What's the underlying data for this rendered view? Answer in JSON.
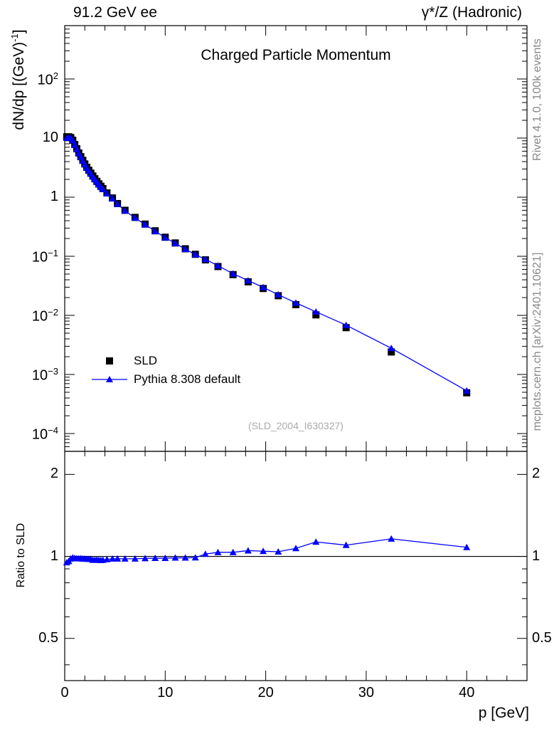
{
  "header": {
    "left_label": "91.2 GeV ee",
    "right_label": "γ*/Z (Hadronic)"
  },
  "side_text": {
    "rivet": "Rivet 4.1.0,  100k events",
    "mcplots": "mcplots.cern.ch [arXiv:2401.10621]"
  },
  "reference_tag": "(SLD_2004_I630327)",
  "legend": [
    {
      "label": "SLD",
      "marker": "square",
      "color": "#000000"
    },
    {
      "label": "Pythia 8.308 default",
      "marker": "triangle",
      "color": "#0000ff"
    }
  ],
  "chart_data": [
    {
      "type": "scatter",
      "title": "Charged Particle Momentum",
      "xlabel": "p [GeV]",
      "ylabel_text": "dN/dp [(GeV)",
      "ylabel_sup": "-1",
      "ylabel_close": "]",
      "yscale": "log",
      "xlim": [
        0,
        46
      ],
      "ylim": [
        5e-05,
        800
      ],
      "ytick_labels": [
        {
          "base": "10",
          "exp": "2",
          "value": 100
        },
        {
          "base": "10",
          "exp": "",
          "value": 10
        },
        {
          "base": "1",
          "exp": "",
          "value": 1
        },
        {
          "base": "10",
          "exp": "−1",
          "value": 0.1
        },
        {
          "base": "10",
          "exp": "−2",
          "value": 0.01
        },
        {
          "base": "10",
          "exp": "−3",
          "value": 0.001
        },
        {
          "base": "10",
          "exp": "−4",
          "value": 0.0001
        }
      ],
      "series": [
        {
          "name": "SLD",
          "x": [
            0.2,
            0.4,
            0.6,
            0.8,
            1.0,
            1.2,
            1.4,
            1.6,
            1.8,
            2.0,
            2.2,
            2.4,
            2.6,
            2.8,
            3.0,
            3.2,
            3.4,
            3.6,
            3.8,
            4.2,
            4.75,
            5.25,
            6.0,
            7.0,
            8.0,
            9.0,
            10.0,
            11.0,
            12.0,
            13.0,
            14.0,
            15.25,
            16.75,
            18.25,
            19.75,
            21.25,
            23.0,
            25.0,
            28.0,
            32.5,
            40.0
          ],
          "y": [
            10.5,
            10.5,
            10.2,
            9.2,
            7.8,
            6.6,
            5.6,
            4.85,
            4.2,
            3.65,
            3.2,
            2.85,
            2.55,
            2.28,
            2.05,
            1.85,
            1.68,
            1.53,
            1.4,
            1.18,
            0.97,
            0.78,
            0.6,
            0.455,
            0.35,
            0.27,
            0.21,
            0.168,
            0.134,
            0.108,
            0.087,
            0.067,
            0.049,
            0.037,
            0.0285,
            0.0215,
            0.0152,
            0.0102,
            0.0062,
            0.0024,
            0.00049
          ]
        },
        {
          "name": "Pythia 8.308 default",
          "x": [
            0.2,
            0.4,
            0.6,
            0.8,
            1.0,
            1.2,
            1.4,
            1.6,
            1.8,
            2.0,
            2.2,
            2.4,
            2.6,
            2.8,
            3.0,
            3.2,
            3.4,
            3.6,
            3.8,
            4.2,
            4.75,
            5.25,
            6.0,
            7.0,
            8.0,
            9.0,
            10.0,
            11.0,
            12.0,
            13.0,
            14.0,
            15.25,
            16.75,
            18.25,
            19.75,
            21.25,
            23.0,
            25.0,
            28.0,
            32.5,
            40.0
          ],
          "y": [
            9.98,
            10.08,
            9.99,
            9.11,
            7.68,
            6.49,
            5.5,
            4.77,
            4.12,
            3.58,
            3.13,
            2.79,
            2.49,
            2.21,
            1.99,
            1.8,
            1.63,
            1.48,
            1.36,
            1.15,
            0.95,
            0.764,
            0.588,
            0.446,
            0.344,
            0.266,
            0.207,
            0.166,
            0.132,
            0.107,
            0.0887,
            0.0693,
            0.0507,
            0.0388,
            0.0298,
            0.0224,
            0.0163,
            0.0115,
            0.00684,
            0.00278,
            0.00053
          ]
        }
      ]
    },
    {
      "type": "line",
      "title": "",
      "xlabel": "p [GeV]",
      "ylabel": "Ratio to SLD",
      "xlim": [
        0,
        46
      ],
      "ylim": [
        0.35,
        2.43
      ],
      "xtick_labels": [
        "0",
        "10",
        "20",
        "30",
        "40"
      ],
      "ytick_labels": [
        "2",
        "1",
        "0.5"
      ],
      "series": [
        {
          "name": "Pythia 8.308 default / SLD",
          "x": [
            0.2,
            0.4,
            0.6,
            0.8,
            1.0,
            1.2,
            1.4,
            1.6,
            1.8,
            2.0,
            2.2,
            2.4,
            2.6,
            2.8,
            3.0,
            3.2,
            3.4,
            3.6,
            3.8,
            4.2,
            4.75,
            5.25,
            6.0,
            7.0,
            8.0,
            9.0,
            10.0,
            11.0,
            12.0,
            13.0,
            14.0,
            15.25,
            16.75,
            18.25,
            19.75,
            21.25,
            23.0,
            25.0,
            28.0,
            32.5,
            40.0
          ],
          "y": [
            0.95,
            0.96,
            0.98,
            0.99,
            0.985,
            0.983,
            0.982,
            0.983,
            0.98,
            0.98,
            0.978,
            0.978,
            0.977,
            0.97,
            0.97,
            0.972,
            0.97,
            0.968,
            0.97,
            0.975,
            0.98,
            0.98,
            0.98,
            0.98,
            0.983,
            0.985,
            0.985,
            0.988,
            0.988,
            0.99,
            1.02,
            1.035,
            1.035,
            1.05,
            1.045,
            1.04,
            1.07,
            1.13,
            1.1,
            1.16,
            1.08
          ]
        }
      ]
    }
  ]
}
